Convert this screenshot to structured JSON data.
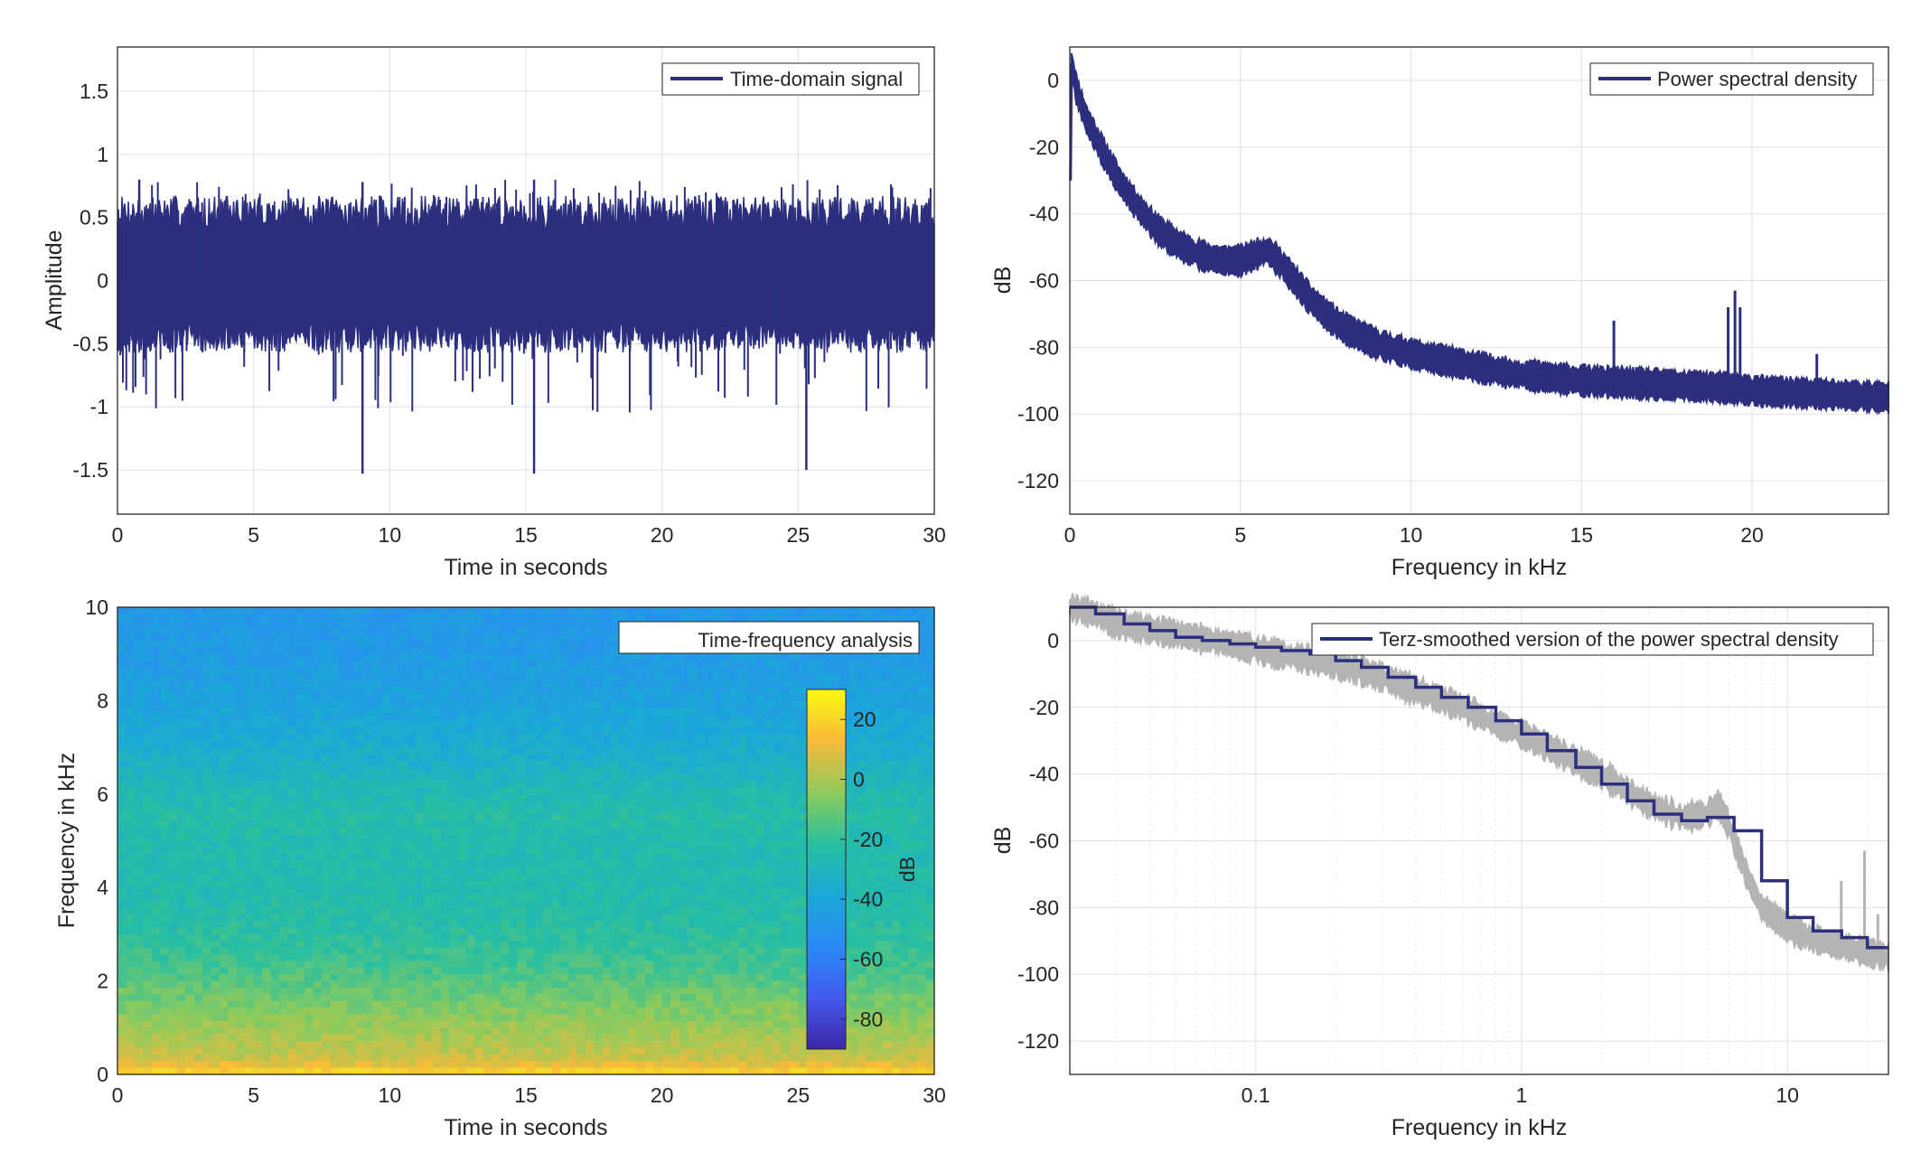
{
  "colors": {
    "signal": "#2b2f7e",
    "raw_psd": "#b4b4b4",
    "grid": "#e0e0e0",
    "axis": "#262626"
  },
  "chart_data": [
    {
      "id": "time_domain",
      "type": "line",
      "xlabel": "Time in seconds",
      "ylabel": "Amplitude",
      "xlim": [
        0,
        30
      ],
      "ylim": [
        -1.85,
        1.85
      ],
      "xticks": [
        0,
        5,
        10,
        15,
        20,
        25,
        30
      ],
      "yticks": [
        -1.5,
        -1,
        -0.5,
        0,
        0.5,
        1,
        1.5
      ],
      "grid": true,
      "legend": {
        "position": "top-right",
        "entries": [
          "Time-domain signal"
        ]
      },
      "series": [
        {
          "name": "Time-domain signal",
          "description_values": {
            "typical_envelope": [
              -0.45,
              0.55
            ],
            "peaks": [
              {
                "x": 9.0,
                "y": -1.53
              },
              {
                "x": 15.3,
                "y": -1.53
              },
              {
                "x": 25.3,
                "y": -1.5
              },
              {
                "x": 0.8,
                "y": 0.8
              },
              {
                "x": 9.0,
                "y": 0.78
              },
              {
                "x": 15.3,
                "y": 0.8
              }
            ]
          }
        }
      ]
    },
    {
      "id": "psd",
      "type": "line",
      "xlabel": "Frequency in kHz",
      "ylabel": "dB",
      "xlim": [
        0,
        24
      ],
      "ylim": [
        -130,
        10
      ],
      "xticks": [
        0,
        5,
        10,
        15,
        20
      ],
      "yticks": [
        -120,
        -100,
        -80,
        -60,
        -40,
        -20,
        0
      ],
      "grid": true,
      "legend": {
        "position": "top-right",
        "entries": [
          "Power spectral density"
        ]
      },
      "series": [
        {
          "name": "Power spectral density",
          "x": [
            0,
            0.05,
            0.2,
            0.5,
            1,
            1.5,
            2,
            2.5,
            3,
            3.5,
            4,
            4.5,
            5,
            5.5,
            5.8,
            6.2,
            6.6,
            7,
            7.5,
            8,
            9,
            10,
            11,
            12,
            13,
            14,
            15,
            16,
            17,
            18,
            19,
            20,
            21,
            22,
            23,
            24
          ],
          "y": [
            -30,
            5,
            -3,
            -12,
            -22,
            -31,
            -38,
            -44,
            -48,
            -51,
            -53,
            -54,
            -54,
            -52,
            -51,
            -55,
            -60,
            -65,
            -70,
            -74,
            -79,
            -82,
            -84,
            -86,
            -88,
            -89,
            -90,
            -90.5,
            -91,
            -91.5,
            -92,
            -93,
            -93.5,
            -94,
            -94.5,
            -95
          ],
          "spikes": [
            {
              "x": 15.95,
              "y": -72
            },
            {
              "x": 19.3,
              "y": -68
            },
            {
              "x": 19.5,
              "y": -63
            },
            {
              "x": 19.65,
              "y": -68
            },
            {
              "x": 21.9,
              "y": -82
            }
          ]
        }
      ]
    },
    {
      "id": "spectrogram",
      "type": "heatmap",
      "xlabel": "Time in seconds",
      "ylabel": "Frequency in kHz",
      "xlim": [
        0,
        30
      ],
      "ylim": [
        0,
        10
      ],
      "xticks": [
        0,
        5,
        10,
        15,
        20,
        25,
        30
      ],
      "yticks": [
        0,
        2,
        4,
        6,
        8,
        10
      ],
      "legend": {
        "position": "top-right",
        "entries": [
          "Time-frequency analysis"
        ]
      },
      "colorbar": {
        "label": "dB",
        "range": [
          -90,
          30
        ],
        "ticks": [
          -80,
          -60,
          -40,
          -20,
          0,
          20
        ]
      },
      "frequency_profile_db": {
        "f": [
          0,
          0.3,
          0.8,
          1.5,
          2.2,
          3,
          4,
          5,
          5.5,
          6,
          6.5,
          7,
          8,
          9,
          10
        ],
        "db": [
          22,
          6,
          0,
          -8,
          -16,
          -22,
          -26,
          -26,
          -24,
          -27,
          -32,
          -36,
          -42,
          -46,
          -48
        ]
      }
    },
    {
      "id": "terz",
      "type": "line",
      "xscale": "log",
      "xlabel": "Frequency in kHz",
      "ylabel": "dB",
      "xlim": [
        0.02,
        24
      ],
      "ylim": [
        -130,
        10
      ],
      "xticks": [
        0.1,
        1,
        10
      ],
      "xticklabels": [
        "0.1",
        "1",
        "10"
      ],
      "yticks": [
        -120,
        -100,
        -80,
        -60,
        -40,
        -20,
        0
      ],
      "grid": true,
      "legend": {
        "position": "top-right",
        "entries": [
          "Terz-smoothed version of the power spectral density"
        ]
      },
      "series": [
        {
          "name": "raw",
          "x": [
            0.02,
            0.025,
            0.03,
            0.05,
            0.08,
            0.12,
            0.2,
            0.3,
            0.4,
            0.6,
            0.8,
            1.0,
            1.5,
            2.0,
            2.5,
            3.0,
            4.0,
            5.0,
            5.5,
            6.0,
            7.0,
            8.0,
            10.0,
            12.0,
            15.0,
            19.0,
            24.0
          ],
          "y": [
            10,
            8,
            5,
            2,
            -1,
            -4,
            -7,
            -11,
            -15,
            -20,
            -25,
            -28,
            -35,
            -40,
            -45,
            -49,
            -53,
            -52,
            -49,
            -55,
            -70,
            -80,
            -86,
            -89,
            -91,
            -93,
            -95
          ]
        },
        {
          "name": "Terz-smoothed version of the power spectral density",
          "x": [
            0.02,
            0.025,
            0.032,
            0.04,
            0.05,
            0.063,
            0.08,
            0.1,
            0.125,
            0.16,
            0.2,
            0.25,
            0.315,
            0.4,
            0.5,
            0.63,
            0.8,
            1.0,
            1.25,
            1.6,
            2.0,
            2.5,
            3.15,
            4.0,
            5.0,
            6.3,
            8.0,
            10.0,
            12.5,
            16.0,
            20.0
          ],
          "y": [
            10,
            8,
            5,
            3,
            1,
            0,
            -1,
            -2,
            -3,
            -4,
            -6,
            -8,
            -11,
            -14,
            -17,
            -20,
            -24,
            -28,
            -33,
            -38,
            -43,
            -48,
            -52,
            -54,
            -53,
            -57,
            -72,
            -83,
            -87,
            -89,
            -92
          ]
        }
      ]
    }
  ]
}
